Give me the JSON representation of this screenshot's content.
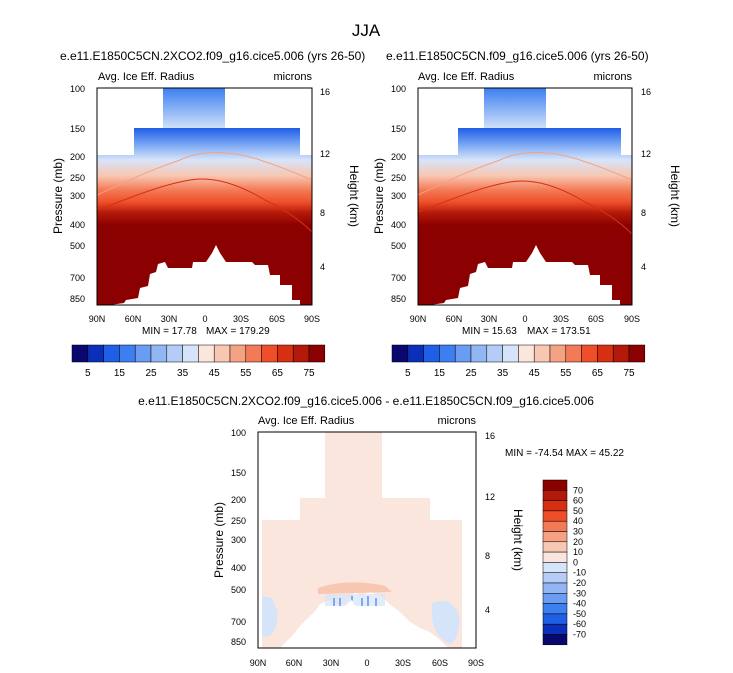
{
  "figure": {
    "title": "JJA"
  },
  "chart_data": [
    {
      "type": "contour",
      "title": "e.e11.E1850C5CN.2XCO2.f09_g16.cice5.006 (yrs 26-50)",
      "left_label": "Avg. Ice Eff. Radius",
      "right_label": "microns",
      "ylabel": "Pressure (mb)",
      "ylabel_right": "Height (km)",
      "x_ticks": [
        "90N",
        "60N",
        "30N",
        "0",
        "30S",
        "60S",
        "90S"
      ],
      "x_range": [
        90,
        -90
      ],
      "y_ticks": [
        "100",
        "150",
        "200",
        "250",
        "300",
        "400",
        "500",
        "700",
        "850"
      ],
      "y_range_mb": [
        100,
        925
      ],
      "y_scale": "log",
      "height_ticks": [
        "16",
        "12",
        "8",
        "4"
      ],
      "min_text": "MIN = 17.78",
      "max_text": "MAX = 179.29",
      "colorbar_labels": [
        "5",
        "15",
        "25",
        "35",
        "45",
        "55",
        "65",
        "75"
      ],
      "levels": [
        5,
        10,
        15,
        20,
        25,
        30,
        35,
        40,
        45,
        50,
        55,
        60,
        65,
        70,
        75
      ]
    },
    {
      "type": "contour",
      "title": "e.e11.E1850C5CN.f09_g16.cice5.006 (yrs 26-50)",
      "left_label": "Avg. Ice Eff. Radius",
      "right_label": "microns",
      "ylabel": "Pressure (mb)",
      "ylabel_right": "Height (km)",
      "x_ticks": [
        "90N",
        "60N",
        "30N",
        "0",
        "30S",
        "60S",
        "90S"
      ],
      "x_range": [
        90,
        -90
      ],
      "y_ticks": [
        "100",
        "150",
        "200",
        "250",
        "300",
        "400",
        "500",
        "700",
        "850"
      ],
      "y_range_mb": [
        100,
        925
      ],
      "y_scale": "log",
      "height_ticks": [
        "16",
        "12",
        "8",
        "4"
      ],
      "min_text": "MIN = 15.63",
      "max_text": "MAX = 173.51",
      "colorbar_labels": [
        "5",
        "15",
        "25",
        "35",
        "45",
        "55",
        "65",
        "75"
      ],
      "levels": [
        5,
        10,
        15,
        20,
        25,
        30,
        35,
        40,
        45,
        50,
        55,
        60,
        65,
        70,
        75
      ]
    },
    {
      "type": "contour",
      "title": "e.e11.E1850C5CN.2XCO2.f09_g16.cice5.006 - e.e11.E1850C5CN.f09_g16.cice5.006",
      "left_label": "Avg. Ice Eff. Radius",
      "right_label": "microns",
      "ylabel": "Pressure (mb)",
      "ylabel_right": "Height (km)",
      "x_ticks": [
        "90N",
        "60N",
        "30N",
        "0",
        "30S",
        "60S",
        "90S"
      ],
      "x_range": [
        90,
        -90
      ],
      "y_ticks": [
        "100",
        "150",
        "200",
        "250",
        "300",
        "400",
        "500",
        "700",
        "850"
      ],
      "y_range_mb": [
        100,
        925
      ],
      "y_scale": "log",
      "height_ticks": [
        "16",
        "12",
        "8",
        "4"
      ],
      "min_max_text": "MIN = -74.54   MAX =  45.22",
      "colorbar_labels": [
        "70",
        "60",
        "50",
        "40",
        "30",
        "20",
        "10",
        "0",
        "-10",
        "-20",
        "-30",
        "-40",
        "-50",
        "-60",
        "-70"
      ],
      "levels": [
        70,
        60,
        50,
        40,
        30,
        20,
        10,
        0,
        -10,
        -20,
        -30,
        -40,
        -50,
        -60,
        -70
      ]
    }
  ],
  "colors": {
    "abs_scale": [
      "#08086e",
      "#0a2fb8",
      "#1f5ee6",
      "#3b7ff0",
      "#6a9cf2",
      "#92b6f4",
      "#b5cdf6",
      "#d6e4fa",
      "#fbe6dd",
      "#f8c7b1",
      "#f5a283",
      "#f37a56",
      "#ee4f28",
      "#d72f12",
      "#b31909",
      "#8b0000"
    ],
    "diff_scale": [
      "#8b0000",
      "#b31909",
      "#d72f12",
      "#ee4f28",
      "#f37a56",
      "#f5a283",
      "#f8c7b1",
      "#fbe6dd",
      "#d6e4fa",
      "#b5cdf6",
      "#92b6f4",
      "#6a9cf2",
      "#3b7ff0",
      "#1f5ee6",
      "#0a2fb8",
      "#08086e"
    ]
  }
}
